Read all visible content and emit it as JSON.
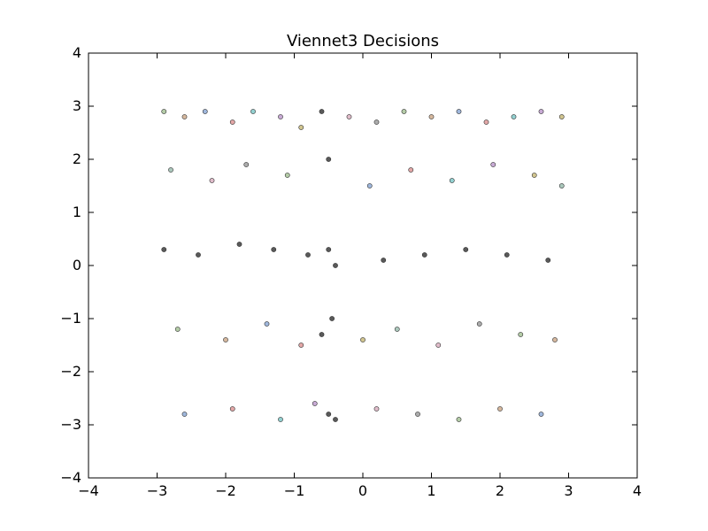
{
  "chart_data": {
    "type": "scatter",
    "title": "Viennet3 Decisions",
    "xlabel": "",
    "ylabel": "",
    "xlim": [
      -4,
      4
    ],
    "ylim": [
      -4,
      4
    ],
    "xticks": [
      -4,
      -3,
      -2,
      -1,
      0,
      1,
      2,
      3,
      4
    ],
    "yticks": [
      -4,
      -3,
      -2,
      -1,
      0,
      1,
      2,
      3,
      4
    ],
    "xtick_labels": [
      "−4",
      "−3",
      "−2",
      "−1",
      "0",
      "1",
      "2",
      "3",
      "4"
    ],
    "ytick_labels": [
      "−4",
      "−3",
      "−2",
      "−1",
      "0",
      "1",
      "2",
      "3",
      "4"
    ],
    "grid": false,
    "legend": "none",
    "point_colors": [
      "#9bbb8a",
      "#c8a07d",
      "#7f9fd0",
      "#d98a8a",
      "#6fc2c2",
      "#b58ec7",
      "#c2b26a",
      "#8fb5a5",
      "#d6a6b8",
      "#909090"
    ],
    "dense_point_color": "#222222",
    "series": [
      {
        "name": "",
        "x": [
          -2.9,
          -2.6,
          -2.3,
          -1.9,
          -1.6,
          -1.2,
          -0.9,
          -0.6,
          -0.2,
          0.2,
          0.6,
          1.0,
          1.4,
          1.8,
          2.2,
          2.6,
          2.9,
          -2.8,
          -2.2,
          -1.7,
          -1.1,
          -0.5,
          0.1,
          0.7,
          1.3,
          1.9,
          2.5,
          2.9,
          -2.9,
          -2.4,
          -1.8,
          -1.3,
          -0.8,
          -0.5,
          -0.4,
          0.3,
          0.9,
          1.5,
          2.1,
          2.7,
          -2.7,
          -2.0,
          -1.4,
          -0.9,
          -0.6,
          -0.45,
          0.0,
          0.5,
          1.1,
          1.7,
          2.3,
          2.8,
          -2.6,
          -1.9,
          -1.2,
          -0.7,
          -0.5,
          -0.4,
          0.2,
          0.8,
          1.4,
          2.0,
          2.6
        ],
        "y": [
          2.9,
          2.8,
          2.9,
          2.7,
          2.9,
          2.8,
          2.6,
          2.9,
          2.8,
          2.7,
          2.9,
          2.8,
          2.9,
          2.7,
          2.8,
          2.9,
          2.8,
          1.8,
          1.6,
          1.9,
          1.7,
          2.0,
          1.5,
          1.8,
          1.6,
          1.9,
          1.7,
          1.5,
          0.3,
          0.2,
          0.4,
          0.3,
          0.2,
          0.3,
          0.0,
          0.1,
          0.2,
          0.3,
          0.2,
          0.1,
          -1.2,
          -1.4,
          -1.1,
          -1.5,
          -1.3,
          -1.0,
          -1.4,
          -1.2,
          -1.5,
          -1.1,
          -1.3,
          -1.4,
          -2.8,
          -2.7,
          -2.9,
          -2.6,
          -2.8,
          -2.9,
          -2.7,
          -2.8,
          -2.9,
          -2.7,
          -2.8
        ]
      }
    ]
  }
}
